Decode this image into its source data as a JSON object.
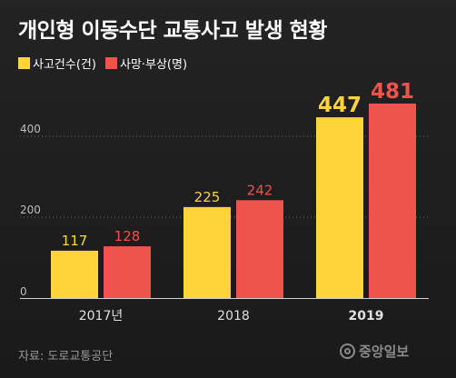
{
  "title": "개인형 이동수단 교통사고 발생 현황",
  "legend": [
    {
      "label": "사고건수(건)",
      "color": "#ffd43b"
    },
    {
      "label": "사망·부상(명)",
      "color": "#f0524c"
    }
  ],
  "source": "자료: 도로교통공단",
  "logo_text": "중앙일보",
  "chart_data": {
    "type": "bar",
    "categories": [
      "2017년",
      "2018",
      "2019"
    ],
    "highlight_category": "2019",
    "series": [
      {
        "name": "사고건수(건)",
        "color": "#ffd43b",
        "values": [
          117,
          225,
          447
        ]
      },
      {
        "name": "사망·부상(명)",
        "color": "#f0524c",
        "values": [
          128,
          242,
          481
        ]
      }
    ],
    "ylim": [
      0,
      500
    ],
    "yticks": [
      0,
      200,
      400
    ],
    "grid": "dotted horizontal",
    "legend_position": "top-left",
    "xlabel": "",
    "ylabel": ""
  }
}
